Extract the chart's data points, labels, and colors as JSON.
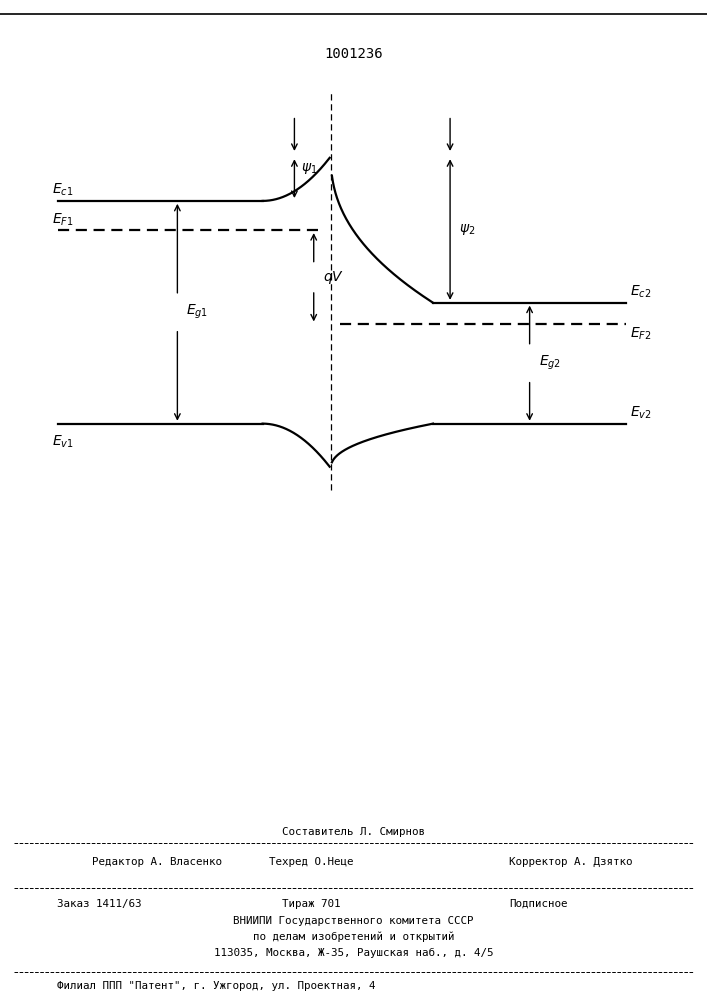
{
  "title": "1001236",
  "title_fontsize": 10,
  "background_color": "#ffffff",
  "fig_width": 7.07,
  "fig_height": 10.0,
  "dpi": 100,
  "footer_line1": "Составитель Л. Смирнов",
  "footer_line2_left": "Редактор А. Власенко",
  "footer_line2_mid": "Техред О.Неце",
  "footer_line2_right": "Корректор А. Дзятко",
  "footer_line3_left": "Заказ 1411/63",
  "footer_line3_mid": "Тираж 701",
  "footer_line3_right": "Подписное",
  "footer_line4": "ВНИИПИ Государственного комитета СССР",
  "footer_line5": "по делам изобретений и открытий",
  "footer_line6": "113035, Москва, Ж-35, Раушская наб., д. 4/5",
  "footer_line7": "Филиал ППП \"Патент\", г. Ужгород, ул. Проектная, 4"
}
